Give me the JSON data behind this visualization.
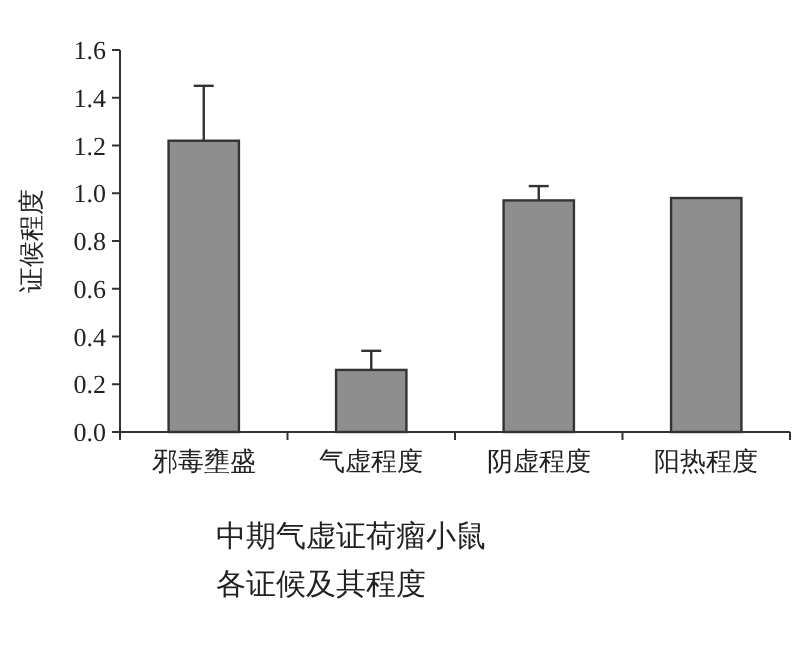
{
  "chart_data": {
    "type": "bar",
    "ylabel": "证候程度",
    "categories": [
      "邪毒壅盛",
      "气虚程度",
      "阴虚程度",
      "阳热程度"
    ],
    "values": [
      1.22,
      0.26,
      0.97,
      0.98
    ],
    "errors": [
      [
        1.22,
        1.45
      ],
      [
        0.26,
        0.34
      ],
      [
        0.97,
        1.03
      ],
      null
    ],
    "color": "#8e8e8e",
    "ylim": [
      0,
      1.6
    ],
    "yticks": [
      {
        "value": 0,
        "label": "0.0"
      },
      0.2,
      0.4,
      0.6,
      0.8,
      {
        "value": 1,
        "label": "1.0"
      },
      1.2,
      1.4,
      1.6
    ],
    "annotations": [
      "中期气虚证荷瘤小鼠",
      "各证候及其程度"
    ]
  }
}
